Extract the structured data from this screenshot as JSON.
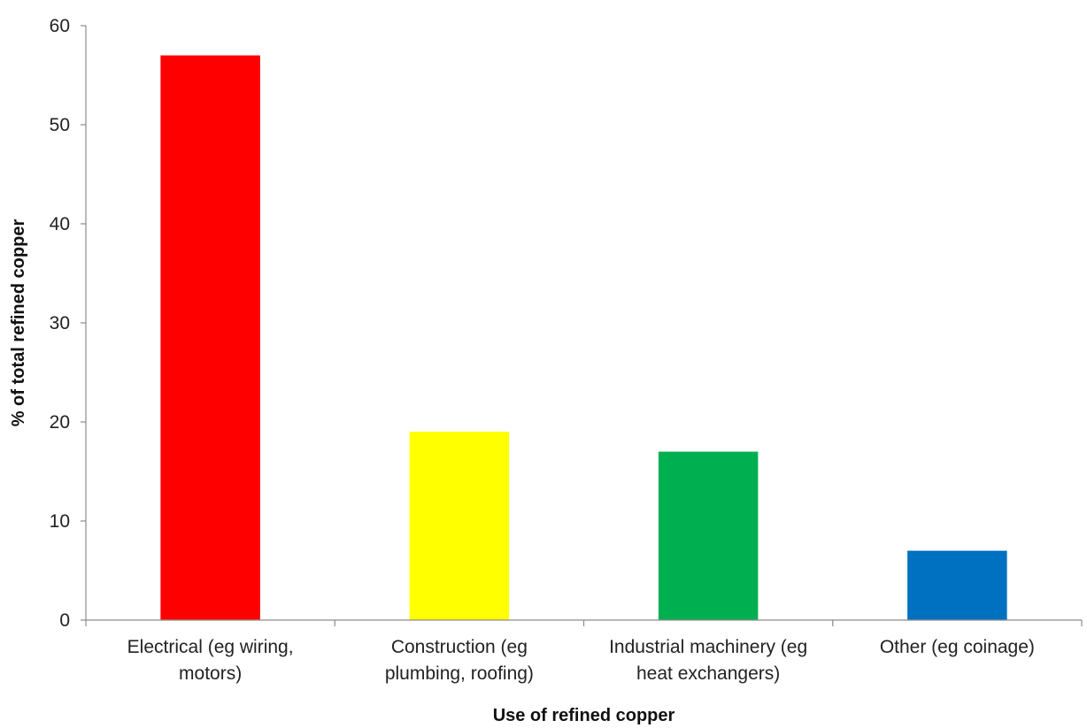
{
  "chart_data": {
    "type": "bar",
    "title": "",
    "categories": [
      [
        "Electrical (eg wiring,",
        "motors)"
      ],
      [
        "Construction (eg",
        "plumbing, roofing)"
      ],
      [
        "Industrial machinery (eg",
        "heat exchangers)"
      ],
      [
        "Other (eg coinage)"
      ]
    ],
    "values": [
      57,
      19,
      17,
      7
    ],
    "colors": [
      "#ff0000",
      "#ffff00",
      "#00b050",
      "#0070c0"
    ],
    "xlabel": "Use of refined copper",
    "ylabel": "% of total refined copper",
    "ylim": [
      0,
      60
    ],
    "yticks": [
      0,
      10,
      20,
      30,
      40,
      50,
      60
    ],
    "grid": false,
    "legend": "none"
  }
}
